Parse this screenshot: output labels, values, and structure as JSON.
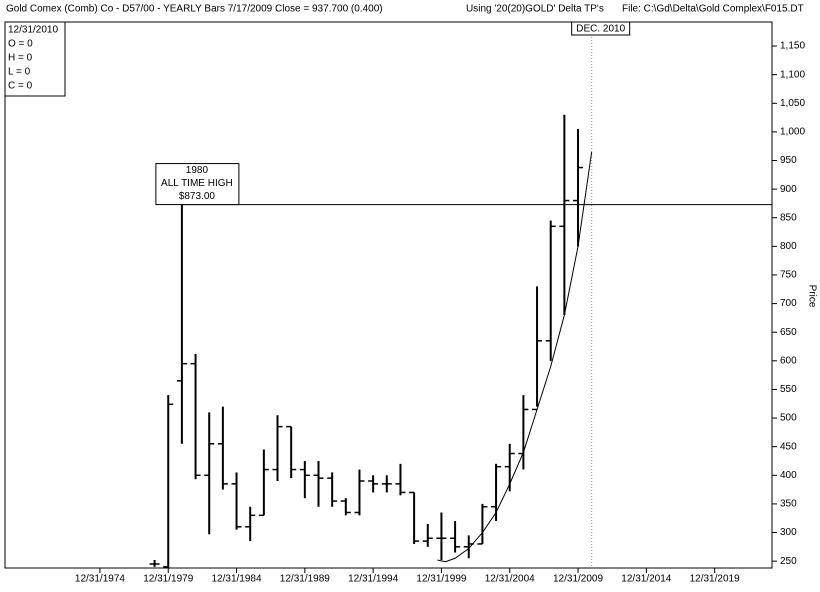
{
  "chart_data": {
    "type": "ohlc",
    "header": {
      "title": "Gold Comex (Comb) Co - D57/00  - YEARLY Bars  7/17/2009 Close = 937.700 (0.400)",
      "study": "Using '20(20)GOLD' Delta TP's",
      "file": "File: C:\\Gd\\Delta\\Gold Complex\\F015.DT"
    },
    "info_box": [
      "12/31/2010",
      "O = 0",
      "H = 0",
      "L = 0",
      "C = 0"
    ],
    "y_label": "Price",
    "color": "#000000",
    "x": [
      1978,
      1979,
      1980,
      1981,
      1982,
      1983,
      1984,
      1985,
      1986,
      1987,
      1988,
      1989,
      1990,
      1991,
      1992,
      1993,
      1994,
      1995,
      1996,
      1997,
      1998,
      1999,
      2000,
      2001,
      2002,
      2003,
      2004,
      2005,
      2006,
      2007,
      2008,
      2009
    ],
    "open": [
      245,
      240,
      565,
      595,
      400,
      455,
      385,
      310,
      330,
      410,
      485,
      410,
      400,
      395,
      355,
      335,
      390,
      385,
      385,
      370,
      285,
      290,
      290,
      275,
      280,
      345,
      415,
      438,
      515,
      635,
      835,
      880
    ],
    "high": [
      252,
      540,
      873,
      612,
      510,
      520,
      405,
      345,
      445,
      505,
      485,
      425,
      425,
      405,
      360,
      410,
      400,
      400,
      420,
      370,
      315,
      335,
      320,
      295,
      350,
      420,
      455,
      540,
      730,
      845,
      1030,
      1005
    ],
    "low": [
      240,
      238,
      455,
      393,
      297,
      375,
      305,
      285,
      330,
      390,
      395,
      360,
      345,
      345,
      330,
      330,
      370,
      370,
      365,
      280,
      275,
      252,
      265,
      255,
      280,
      320,
      372,
      410,
      520,
      600,
      680,
      800
    ],
    "close": [
      245,
      524,
      595,
      400,
      455,
      385,
      310,
      330,
      410,
      485,
      410,
      400,
      395,
      355,
      335,
      390,
      385,
      385,
      370,
      285,
      290,
      290,
      275,
      280,
      345,
      415,
      438,
      515,
      635,
      835,
      880,
      937.7
    ],
    "curve": {
      "x": [
        1998.7,
        1999.3,
        2000,
        2001,
        2002,
        2003,
        2004,
        2005,
        2006,
        2007,
        2008,
        2009,
        2010
      ],
      "values": [
        252,
        249,
        255,
        272,
        300,
        335,
        385,
        440,
        515,
        590,
        680,
        800,
        965
      ]
    },
    "hline": {
      "value": 873,
      "label": [
        "1980",
        "ALL TIME HIGH",
        "$873.00"
      ]
    },
    "vline": {
      "x": 2010,
      "label": "DEC. 2010"
    },
    "xlim": [
      1967.05,
      2023.2
    ],
    "xticks": [
      {
        "value": 1974,
        "label": "12/31/1974"
      },
      {
        "value": 1979,
        "label": "12/31/1979"
      },
      {
        "value": 1984,
        "label": "12/31/1984"
      },
      {
        "value": 1989,
        "label": "12/31/1989"
      },
      {
        "value": 1994,
        "label": "12/31/1994"
      },
      {
        "value": 1999,
        "label": "12/31/1999"
      },
      {
        "value": 2004,
        "label": "12/31/2004"
      },
      {
        "value": 2009,
        "label": "12/31/2009"
      },
      {
        "value": 2014,
        "label": "12/31/2014"
      },
      {
        "value": 2019,
        "label": "12/31/2019"
      }
    ],
    "ylim": [
      238,
      1192
    ],
    "yticks": [
      250,
      300,
      350,
      400,
      450,
      500,
      550,
      600,
      650,
      700,
      750,
      800,
      850,
      900,
      950,
      {
        "value": 1000,
        "label": "1,000"
      },
      {
        "value": 1050,
        "label": "1,050"
      },
      {
        "value": 1100,
        "label": "1,100"
      },
      {
        "value": 1150,
        "label": "1,150"
      }
    ]
  }
}
